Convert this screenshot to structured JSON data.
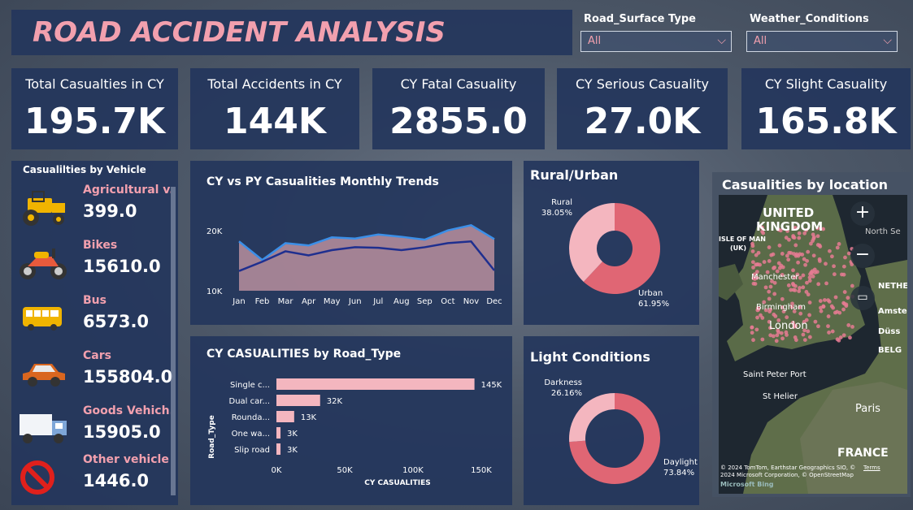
{
  "header": {
    "title": "ROAD ACCIDENT ANALYSIS"
  },
  "filters": [
    {
      "label": "Road_Surface Type",
      "value": "All"
    },
    {
      "label": "Weather_Conditions",
      "value": "All"
    }
  ],
  "kpis": [
    {
      "label": "Total Casualties in CY",
      "value": "195.7K"
    },
    {
      "label": "Total Accidents in CY",
      "value": "144K"
    },
    {
      "label": "CY Fatal Casuality",
      "value": "2855.0"
    },
    {
      "label": "CY Serious Casuality",
      "value": "27.0K"
    },
    {
      "label": "CY Slight Casuality",
      "value": "165.8K"
    }
  ],
  "vehicles": {
    "title": "Casualilties by Vehicle",
    "items": [
      {
        "name": "Agricultural v...",
        "value": "399.0",
        "icon": "tractor-icon",
        "color": "#f0b400"
      },
      {
        "name": "Bikes",
        "value": "15610.0",
        "icon": "motorbike-icon",
        "color": "#e85a3c"
      },
      {
        "name": "Bus",
        "value": "6573.0",
        "icon": "bus-icon",
        "color": "#f0b400"
      },
      {
        "name": "Cars",
        "value": "155804.0",
        "icon": "car-icon",
        "color": "#d9661f"
      },
      {
        "name": "Goods Vehich...",
        "value": "15905.0",
        "icon": "truck-icon",
        "color": "#7ea6d8"
      },
      {
        "name": "Other vehicle",
        "value": "1446.0",
        "icon": "no-entry-icon",
        "color": "#e0201c"
      }
    ]
  },
  "trend_chart": {
    "title": "CY vs PY Casualities Monthly Trends",
    "y_ticks": [
      "20K",
      "10K"
    ]
  },
  "road_chart": {
    "title": "CY CASUALITIES by Road_Type",
    "y_axis_label": "Road_Type",
    "x_axis_label": "CY CASUALITIES",
    "x_ticks": [
      "0K",
      "50K",
      "100K",
      "150K"
    ]
  },
  "rural_chart": {
    "title": "Rural/Urban"
  },
  "light_chart": {
    "title": "Light Conditions"
  },
  "map": {
    "title": "Casualities by location",
    "labels": [
      {
        "text": "UNITED"
      },
      {
        "text": "KINGDOM"
      },
      {
        "text": "North Se"
      },
      {
        "text": "ISLE OF MAN"
      },
      {
        "text": "(UK)"
      },
      {
        "text": "NETHE"
      },
      {
        "text": "Manchester"
      },
      {
        "text": "Birmingham"
      },
      {
        "text": "Amste"
      },
      {
        "text": "London"
      },
      {
        "text": "Düss"
      },
      {
        "text": "BELG"
      },
      {
        "text": "Saint Peter Port"
      },
      {
        "text": "St Helier"
      },
      {
        "text": "Paris"
      },
      {
        "text": "FRANCE"
      }
    ],
    "zoom_in": "+",
    "zoom_out": "−",
    "attribution": "© 2024 TomTom, Earthstar Geographics SIO, © 2024 Microsoft Corporation, © OpenStreetMap",
    "terms": "Terms",
    "bing": "Microsoft Bing"
  },
  "chart_data": [
    {
      "type": "area",
      "title": "CY vs PY Casualities Monthly Trends",
      "categories": [
        "Jan",
        "Feb",
        "Mar",
        "Apr",
        "May",
        "Jun",
        "Jul",
        "Aug",
        "Sep",
        "Oct",
        "Nov",
        "Dec"
      ],
      "series": [
        {
          "name": "CY",
          "values": [
            18500,
            15300,
            18200,
            17800,
            19200,
            19000,
            19700,
            19300,
            18800,
            20400,
            21300,
            18900
          ],
          "color": "#3b8fe8"
        },
        {
          "name": "PY",
          "values": [
            13400,
            15000,
            16800,
            16100,
            17000,
            17500,
            17400,
            17000,
            17500,
            18200,
            18500,
            13500
          ],
          "color": "#1f2f8f"
        }
      ],
      "ylim": [
        10000,
        24000
      ],
      "area_color": "#b98f9e"
    },
    {
      "type": "bar",
      "title": "CY CASUALITIES by Road_Type",
      "categories": [
        "Single c...",
        "Dual car...",
        "Rounda...",
        "One wa...",
        "Slip road"
      ],
      "values": [
        145000,
        32000,
        13000,
        3000,
        3000
      ],
      "value_labels": [
        "145K",
        "32K",
        "13K",
        "3K",
        "3K"
      ],
      "xlim": [
        0,
        150000
      ],
      "xlabel": "CY CASUALITIES",
      "ylabel": "Road_Type",
      "color": "#f4b6bf"
    },
    {
      "type": "pie",
      "title": "Rural/Urban",
      "slices": [
        {
          "name": "Rural",
          "value": 38.05,
          "label": "38.05%",
          "color": "#f4b6bf"
        },
        {
          "name": "Urban",
          "value": 61.95,
          "label": "61.95%",
          "color": "#e06674"
        }
      ]
    },
    {
      "type": "pie",
      "title": "Light Conditions",
      "slices": [
        {
          "name": "Darkness",
          "value": 26.16,
          "label": "26.16%",
          "color": "#f4b6bf"
        },
        {
          "name": "Daylight",
          "value": 73.84,
          "label": "73.84%",
          "color": "#e06674"
        }
      ]
    }
  ]
}
